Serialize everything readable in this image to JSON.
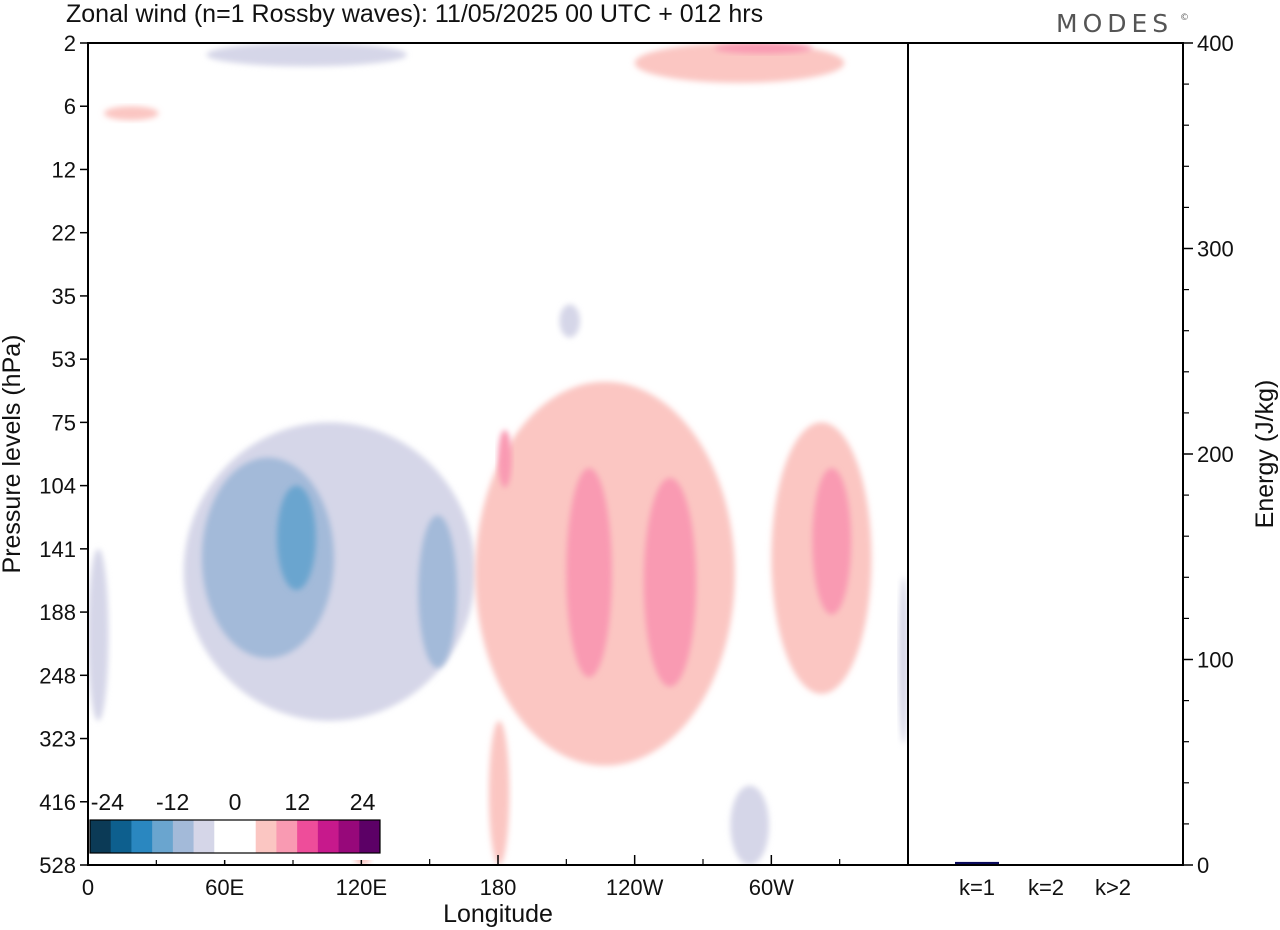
{
  "title": "Zonal wind (n=1 Rossby waves):  11/05/2025  00 UTC  + 012 hrs",
  "logo": "MODES",
  "logo_mark": "©",
  "chart_data": [
    {
      "type": "heatmap",
      "xlabel": "Longitude",
      "ylabel": "Pressure levels (hPa)",
      "x_ticks": [
        "0",
        "60E",
        "120E",
        "180",
        "120W",
        "60W"
      ],
      "x_tick_lon": [
        0,
        60,
        120,
        180,
        240,
        300
      ],
      "xlim": [
        0,
        360
      ],
      "y_ticks": [
        "2",
        "6",
        "12",
        "22",
        "35",
        "53",
        "75",
        "104",
        "141",
        "188",
        "248",
        "323",
        "416",
        "528"
      ],
      "ylim": [
        "2",
        "528"
      ],
      "colorbar": {
        "ticks": [
          "-24",
          "-12",
          "0",
          "12",
          "24"
        ],
        "colors": [
          "#0b3a56",
          "#0d5f8e",
          "#2a87c0",
          "#6aa5cf",
          "#a3bad9",
          "#d5d6e8",
          "#ffffff",
          "#ffffff",
          "#fbc6c2",
          "#f99ab2",
          "#ee4d9a",
          "#c7198c",
          "#97087a",
          "#5c0066"
        ]
      },
      "regions": [
        {
          "sign": "negative",
          "level": 1,
          "lon": [
            42,
            170
          ],
          "pressure": [
            75,
            300
          ]
        },
        {
          "sign": "negative",
          "level": 2,
          "lon": [
            50,
            108
          ],
          "pressure": [
            90,
            230
          ]
        },
        {
          "sign": "negative",
          "level": 3,
          "lon": [
            83,
            100
          ],
          "pressure": [
            104,
            170
          ]
        },
        {
          "sign": "negative",
          "level": 2,
          "lon": [
            145,
            162
          ],
          "pressure": [
            120,
            240
          ]
        },
        {
          "sign": "negative",
          "level": 1,
          "lon": [
            0,
            9
          ],
          "pressure": [
            141,
            300
          ]
        },
        {
          "sign": "negative",
          "level": 1,
          "lon": [
            52,
            140
          ],
          "pressure": [
            2,
            3
          ]
        },
        {
          "sign": "negative",
          "level": 1,
          "lon": [
            207,
            216
          ],
          "pressure": [
            37,
            46
          ]
        },
        {
          "sign": "negative",
          "level": 1,
          "lon": [
            282,
            299
          ],
          "pressure": [
            390,
            528
          ]
        },
        {
          "sign": "negative",
          "level": 1,
          "lon": [
            356,
            360
          ],
          "pressure": [
            160,
            330
          ]
        },
        {
          "sign": "positive",
          "level": 1,
          "lon": [
            170,
            284
          ],
          "pressure": [
            60,
            360
          ]
        },
        {
          "sign": "positive",
          "level": 2,
          "lon": [
            180,
            186
          ],
          "pressure": [
            78,
            105
          ]
        },
        {
          "sign": "positive",
          "level": 2,
          "lon": [
            210,
            230
          ],
          "pressure": [
            95,
            250
          ]
        },
        {
          "sign": "positive",
          "level": 2,
          "lon": [
            244,
            267
          ],
          "pressure": [
            100,
            260
          ]
        },
        {
          "sign": "positive",
          "level": 1,
          "lon": [
            300,
            344
          ],
          "pressure": [
            75,
            268
          ]
        },
        {
          "sign": "positive",
          "level": 2,
          "lon": [
            318,
            335
          ],
          "pressure": [
            95,
            190
          ]
        },
        {
          "sign": "positive",
          "level": 1,
          "lon": [
            240,
            332
          ],
          "pressure": [
            2,
            4
          ]
        },
        {
          "sign": "positive",
          "level": 2,
          "lon": [
            275,
            318
          ],
          "pressure": [
            2,
            2.4
          ]
        },
        {
          "sign": "positive",
          "level": 1,
          "lon": [
            7,
            31
          ],
          "pressure": [
            6,
            7
          ]
        },
        {
          "sign": "positive",
          "level": 1,
          "lon": [
            176,
            185
          ],
          "pressure": [
            300,
            528
          ]
        },
        {
          "sign": "positive",
          "level": 1,
          "lon": [
            117,
            124
          ],
          "pressure": [
            500,
            528
          ]
        }
      ]
    },
    {
      "type": "bar",
      "categories": [
        "k=1",
        "k=2",
        "k>2"
      ],
      "values": [
        1.5,
        0.4,
        0.4
      ],
      "ylabel": "Energy (J/kg)",
      "ylim": [
        0,
        400
      ],
      "y_ticks": [
        "0",
        "100",
        "200",
        "300",
        "400"
      ],
      "bar_color": "#0a0a5c"
    }
  ]
}
